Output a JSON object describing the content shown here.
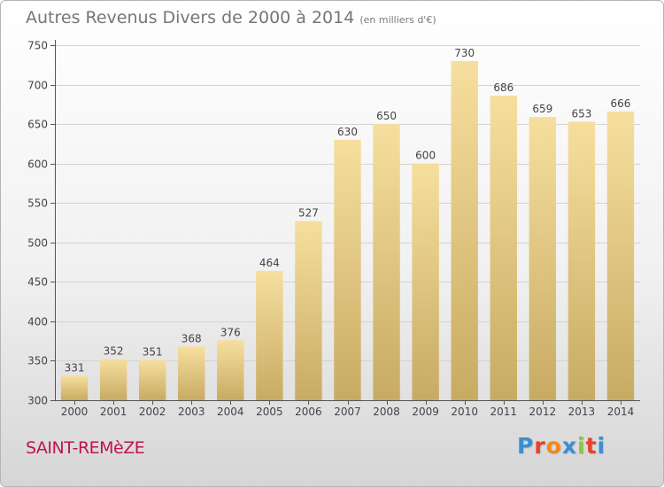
{
  "header": {
    "title": "Autres Revenus Divers de 2000 à 2014",
    "unit": "(en milliers d'€)"
  },
  "footer": {
    "commune": "SAINT-REMèZE",
    "logo": [
      "P",
      "r",
      "o",
      "x",
      "i",
      "t",
      "i"
    ]
  },
  "colors": {
    "commune": "#c0144c",
    "bar_top": "#f6df9e",
    "bar_bottom": "#c8ab63",
    "logo": [
      "#3a8fd0",
      "#e8402a",
      "#f08a1c",
      "#3a8fd0",
      "#8cc63e",
      "#e8402a",
      "#3a8fd0"
    ]
  },
  "chart_data": {
    "type": "bar",
    "title": "Autres Revenus Divers de 2000 à 2014",
    "subtitle": "(en milliers d'€)",
    "xlabel": "",
    "ylabel": "",
    "categories": [
      "2000",
      "2001",
      "2002",
      "2003",
      "2004",
      "2005",
      "2006",
      "2007",
      "2008",
      "2009",
      "2010",
      "2011",
      "2012",
      "2013",
      "2014"
    ],
    "values": [
      331,
      352,
      351,
      368,
      376,
      464,
      527,
      630,
      650,
      600,
      730,
      686,
      659,
      653,
      666
    ],
    "data_labels": [
      "331",
      "352",
      "351",
      "368",
      "376",
      "464",
      "527",
      "630",
      "650",
      "600",
      "730",
      "686",
      "659",
      "653",
      "666"
    ],
    "ylim": [
      300,
      750
    ],
    "yticks": [
      300,
      350,
      400,
      450,
      500,
      550,
      600,
      650,
      700,
      750
    ],
    "ytick_labels": [
      "300",
      "350",
      "400",
      "450",
      "500",
      "550",
      "600",
      "650",
      "700",
      "750"
    ],
    "grid": true,
    "legend": "none"
  }
}
